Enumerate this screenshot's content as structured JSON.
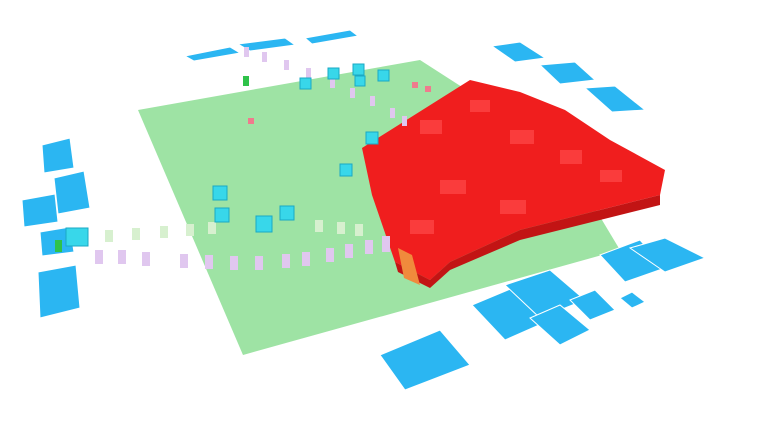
{
  "scene": {
    "kind": "isometric-voxel-game-view",
    "colors": {
      "background": "#ffffff",
      "ground": "#9ee3a4",
      "ground_grid": "#8fd496",
      "red_territory": "#f01e1e",
      "red_dark": "#c21414",
      "red_light": "#ff4a4a",
      "blue_tiles": "#2bb6f2",
      "blue_tiles_edge": "#1e9fd8",
      "cyan_units": "#38d7ea",
      "lavender_markers": "#e0c7ef",
      "pale_green_markers": "#d7f0cf",
      "orange_edge": "#f08a3c",
      "green_unit": "#2fc24a",
      "pink_dot": "#ef7b8d"
    }
  }
}
